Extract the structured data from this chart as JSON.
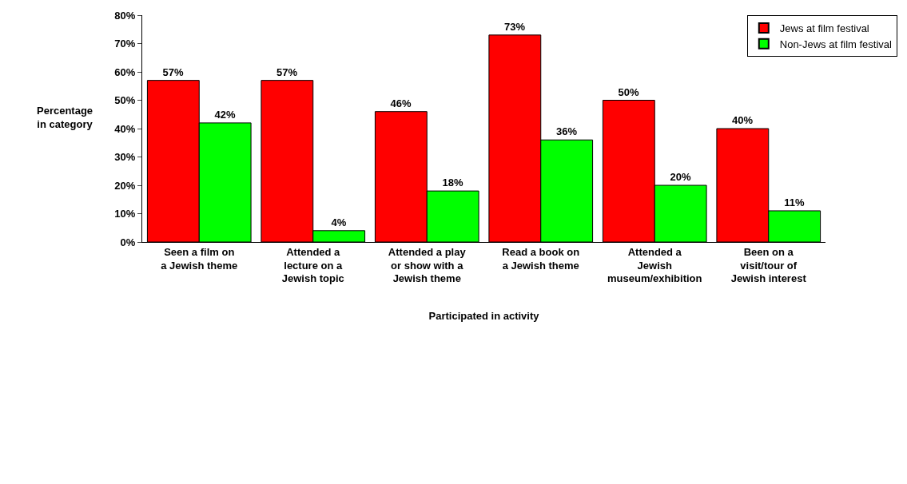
{
  "chart_data": {
    "type": "bar",
    "xlabel": "Participated in activity",
    "ylabel": "Percentage in category",
    "categories": [
      "Seen a film on a Jewish theme",
      "Attended a lecture on a Jewish topic",
      "Attended a play or show with a Jewish theme",
      "Read a book on a Jewish theme",
      "Attended a Jewish museum/exhibition",
      "Been on a visit/tour of Jewish interest"
    ],
    "series": [
      {
        "name": "Jews at film festival",
        "color": "#ff0000",
        "values": [
          57,
          57,
          46,
          73,
          50,
          40
        ],
        "value_labels": [
          "57%",
          "57%",
          "46%",
          "73%",
          "50%",
          "40%"
        ]
      },
      {
        "name": "Non-Jews at film festival",
        "color": "#00ff00",
        "values": [
          42,
          4,
          18,
          36,
          20,
          11
        ],
        "value_labels": [
          "42%",
          "4%",
          "18%",
          "36%",
          "20%",
          "11%"
        ]
      }
    ],
    "ylim": [
      0,
      80
    ],
    "yticks": [
      {
        "value": 0,
        "label": "0%"
      },
      {
        "value": 10,
        "label": "10%"
      },
      {
        "value": 20,
        "label": "20%"
      },
      {
        "value": 30,
        "label": "30%"
      },
      {
        "value": 40,
        "label": "40%"
      },
      {
        "value": 50,
        "label": "50%"
      },
      {
        "value": 60,
        "label": "60%"
      },
      {
        "value": 70,
        "label": "70%"
      },
      {
        "value": 80,
        "label": "80%"
      }
    ],
    "legend": "top right"
  }
}
